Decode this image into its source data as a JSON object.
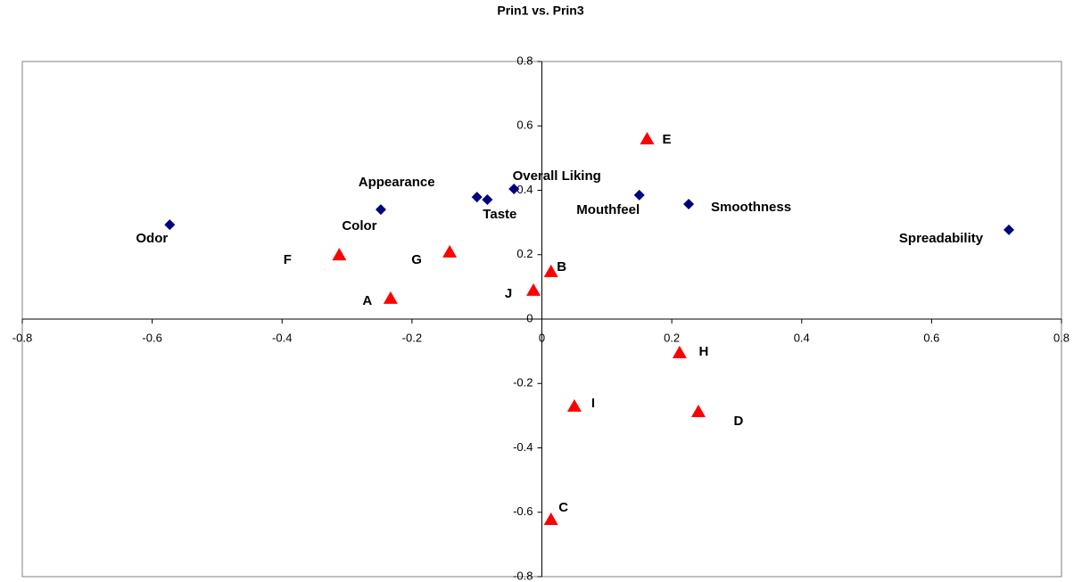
{
  "chart_data": {
    "type": "scatter",
    "title": "Prin1 vs. Prin3",
    "xlim": [
      -0.8,
      0.8
    ],
    "ylim": [
      -0.8,
      0.8
    ],
    "xticks": [
      -0.8,
      -0.6,
      -0.4,
      -0.2,
      0,
      0.2,
      0.4,
      0.6,
      0.8
    ],
    "yticks": [
      -0.8,
      -0.6,
      -0.4,
      -0.2,
      0,
      0.2,
      0.4,
      0.6,
      0.8
    ],
    "series": [
      {
        "color": "#000080",
        "marker": "diamond",
        "labels": [
          "Odor",
          "Color",
          "Appearance",
          "Taste",
          "Overall Liking",
          "Mouthfeel",
          "Smoothness",
          "Spreadability"
        ],
        "x": [
          -0.573,
          -0.248,
          -0.1,
          -0.084,
          -0.043,
          0.15,
          0.226,
          0.719
        ],
        "values": [
          0.293,
          0.34,
          0.379,
          0.371,
          0.404,
          0.385,
          0.357,
          0.277
        ]
      },
      {
        "color": "#ff0000",
        "marker": "triangle",
        "labels": [
          "A",
          "F",
          "G",
          "J",
          "B",
          "E",
          "H",
          "I",
          "D",
          "C"
        ],
        "x": [
          -0.233,
          -0.312,
          -0.142,
          -0.013,
          0.014,
          0.162,
          0.212,
          0.05,
          0.241,
          0.014
        ],
        "values": [
          0.064,
          0.199,
          0.208,
          0.089,
          0.147,
          0.559,
          -0.105,
          -0.271,
          -0.288,
          -0.623
        ]
      }
    ]
  }
}
